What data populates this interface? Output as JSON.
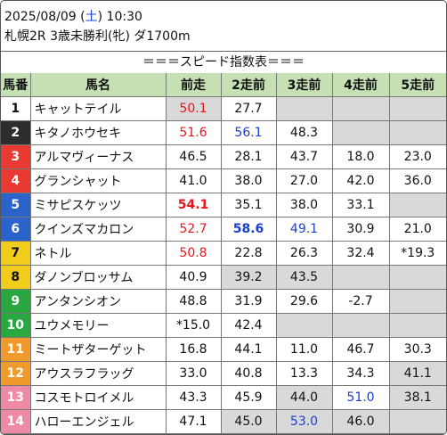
{
  "header": {
    "date": "2025/08/09",
    "weekday_open": " (",
    "weekday": "土",
    "weekday_close": ")",
    "time": " 10:30",
    "race": "札幌2R 3歳未勝利(牝) ダ1700m"
  },
  "title": "＝＝＝スピード指数表＝＝＝",
  "columns": [
    "馬番",
    "馬名",
    "前走",
    "2走前",
    "3走前",
    "4走前",
    "5走前"
  ],
  "horses": [
    {
      "num": "1",
      "color": "#ffffff",
      "name": "キャットテイル",
      "v": [
        "50.1",
        "27.7",
        "",
        "",
        ""
      ],
      "st": [
        "red",
        "",
        "",
        "",
        ""
      ],
      "bg": [
        1,
        0,
        1,
        1,
        1
      ]
    },
    {
      "num": "2",
      "color": "#2d2d2d",
      "name": "キタノホウセキ",
      "v": [
        "51.6",
        "56.1",
        "48.3",
        "",
        ""
      ],
      "st": [
        "red",
        "blue",
        "",
        "",
        ""
      ],
      "bg": [
        0,
        0,
        0,
        1,
        1
      ]
    },
    {
      "num": "3",
      "color": "#e83a33",
      "name": "アルマヴィーナス",
      "v": [
        "46.5",
        "28.1",
        "43.7",
        "18.0",
        "23.0"
      ],
      "st": [
        "",
        "",
        "",
        "",
        ""
      ],
      "bg": [
        0,
        0,
        0,
        0,
        0
      ]
    },
    {
      "num": "4",
      "color": "#e83a33",
      "name": "グランシャット",
      "v": [
        "41.0",
        "38.0",
        "27.0",
        "42.0",
        "36.0"
      ],
      "st": [
        "",
        "",
        "",
        "",
        ""
      ],
      "bg": [
        0,
        0,
        0,
        0,
        0
      ]
    },
    {
      "num": "5",
      "color": "#2a63c9",
      "name": "ミサピスケッツ",
      "v": [
        "54.1",
        "35.1",
        "38.0",
        "33.1",
        ""
      ],
      "st": [
        "red bold",
        "",
        "",
        "",
        ""
      ],
      "bg": [
        0,
        0,
        0,
        0,
        1
      ]
    },
    {
      "num": "6",
      "color": "#2a63c9",
      "name": "クインズマカロン",
      "v": [
        "52.7",
        "58.6",
        "49.1",
        "30.9",
        "21.0"
      ],
      "st": [
        "red",
        "blue bold",
        "blue",
        "",
        ""
      ],
      "bg": [
        0,
        0,
        0,
        0,
        0
      ]
    },
    {
      "num": "7",
      "color": "#f2cc1a",
      "name": "ネトル",
      "v": [
        "50.8",
        "22.8",
        "26.3",
        "32.4",
        "*19.3"
      ],
      "st": [
        "red",
        "",
        "",
        "",
        ""
      ],
      "bg": [
        0,
        0,
        0,
        0,
        0
      ]
    },
    {
      "num": "8",
      "color": "#f2cc1a",
      "name": "ダノンブロッサム",
      "v": [
        "40.9",
        "39.2",
        "43.5",
        "",
        ""
      ],
      "st": [
        "",
        "",
        "",
        "",
        ""
      ],
      "bg": [
        0,
        1,
        1,
        1,
        1
      ]
    },
    {
      "num": "9",
      "color": "#29a842",
      "name": "アンタンシオン",
      "v": [
        "48.8",
        "31.9",
        "29.6",
        "-2.7",
        ""
      ],
      "st": [
        "",
        "",
        "",
        "",
        ""
      ],
      "bg": [
        0,
        0,
        0,
        0,
        1
      ]
    },
    {
      "num": "10",
      "color": "#29a842",
      "name": "ユウメモリー",
      "v": [
        "*15.0",
        "42.4",
        "",
        "",
        ""
      ],
      "st": [
        "",
        "",
        "",
        "",
        ""
      ],
      "bg": [
        0,
        0,
        1,
        1,
        1
      ]
    },
    {
      "num": "11",
      "color": "#f09a2e",
      "name": "ミートザターゲット",
      "v": [
        "16.8",
        "44.1",
        "11.0",
        "46.7",
        "30.3"
      ],
      "st": [
        "",
        "",
        "",
        "",
        ""
      ],
      "bg": [
        0,
        0,
        0,
        0,
        0
      ]
    },
    {
      "num": "12",
      "color": "#f09a2e",
      "name": "アウスラフラッグ",
      "v": [
        "33.0",
        "40.8",
        "13.3",
        "34.3",
        "41.1"
      ],
      "st": [
        "",
        "",
        "",
        "",
        ""
      ],
      "bg": [
        0,
        0,
        0,
        0,
        1
      ]
    },
    {
      "num": "13",
      "color": "#ee8aa4",
      "name": "コスモトロイメル",
      "v": [
        "43.3",
        "45.9",
        "44.0",
        "51.0",
        "38.1"
      ],
      "st": [
        "",
        "",
        "",
        "blue",
        ""
      ],
      "bg": [
        0,
        0,
        1,
        0,
        1
      ]
    },
    {
      "num": "14",
      "color": "#ee8aa4",
      "name": "ハローエンジェル",
      "v": [
        "47.1",
        "45.0",
        "53.0",
        "46.0",
        ""
      ],
      "st": [
        "",
        "",
        "blue",
        "",
        ""
      ],
      "bg": [
        0,
        1,
        1,
        1,
        1
      ]
    }
  ]
}
